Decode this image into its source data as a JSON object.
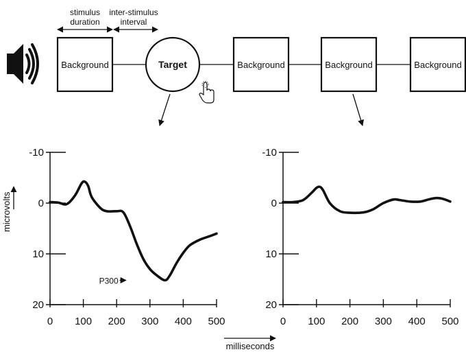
{
  "sequence": {
    "annotation_duration_line1": "stimulus",
    "annotation_duration_line2": "duration",
    "annotation_isi_line1": "inter-stimulus",
    "annotation_isi_line2": "interval",
    "stimuli": [
      {
        "label": "Background",
        "kind": "background"
      },
      {
        "label": "Target",
        "kind": "target"
      },
      {
        "label": "Background",
        "kind": "background"
      },
      {
        "label": "Background",
        "kind": "background"
      },
      {
        "label": "Background",
        "kind": "background"
      }
    ],
    "icons": [
      "speaker-icon",
      "hand-pointer-icon"
    ]
  },
  "axes": {
    "ylabel": "microvolts",
    "xlabel": "milliseconds"
  },
  "chart_data": [
    {
      "type": "line",
      "title": "",
      "xlabel": "milliseconds",
      "ylabel": "microvolts",
      "xlim": [
        0,
        500
      ],
      "ylim": [
        20,
        -10
      ],
      "x_ticks": [
        "0",
        "100",
        "200",
        "300",
        "400",
        "500"
      ],
      "y_ticks": [
        "-10",
        "0",
        "10",
        "20"
      ],
      "annotation": "P300",
      "series": [
        {
          "x": [
            0,
            25,
            50,
            75,
            95,
            105,
            115,
            125,
            150,
            170,
            200,
            220,
            240,
            260,
            280,
            300,
            320,
            345,
            360,
            380,
            400,
            420,
            450,
            480,
            500
          ],
          "y": [
            -0.2,
            -0.1,
            0.2,
            -1.5,
            -3.9,
            -4.2,
            -3.3,
            -1.2,
            0.9,
            1.6,
            1.6,
            1.8,
            4.5,
            8.0,
            11.0,
            13.0,
            14.2,
            15.2,
            14.2,
            11.8,
            9.8,
            8.3,
            7.2,
            6.5,
            6.0
          ]
        }
      ]
    },
    {
      "type": "line",
      "title": "",
      "xlabel": "milliseconds",
      "ylabel": "microvolts",
      "xlim": [
        0,
        500
      ],
      "ylim": [
        20,
        -10
      ],
      "x_ticks": [
        "0",
        "100",
        "200",
        "300",
        "400",
        "500"
      ],
      "y_ticks": [
        "-10",
        "0",
        "10",
        "20"
      ],
      "series": [
        {
          "x": [
            0,
            30,
            60,
            85,
            100,
            110,
            120,
            140,
            170,
            200,
            230,
            250,
            270,
            300,
            330,
            350,
            380,
            410,
            440,
            460,
            480,
            500
          ],
          "y": [
            -0.2,
            -0.2,
            -0.6,
            -2.0,
            -3.0,
            -3.2,
            -2.5,
            0.0,
            1.6,
            1.9,
            1.9,
            1.7,
            1.2,
            0.0,
            -0.7,
            -0.6,
            -0.3,
            -0.3,
            -0.8,
            -1.0,
            -0.8,
            -0.3
          ]
        }
      ]
    }
  ]
}
